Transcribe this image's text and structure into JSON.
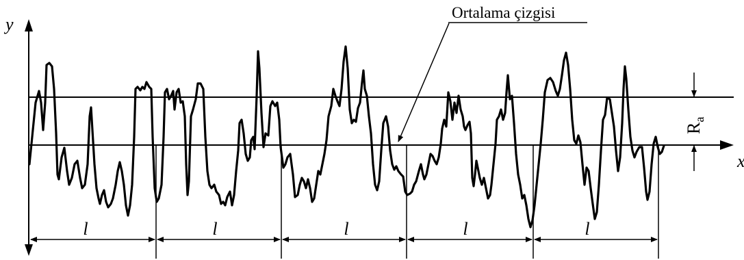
{
  "diagram": {
    "title": "Ortalama çizgisi",
    "axes": {
      "y_label": "y",
      "x_label": "x"
    },
    "ra_label": {
      "main": "R",
      "sub": "a"
    },
    "segment_label": "l",
    "segment_count": 5
  }
}
